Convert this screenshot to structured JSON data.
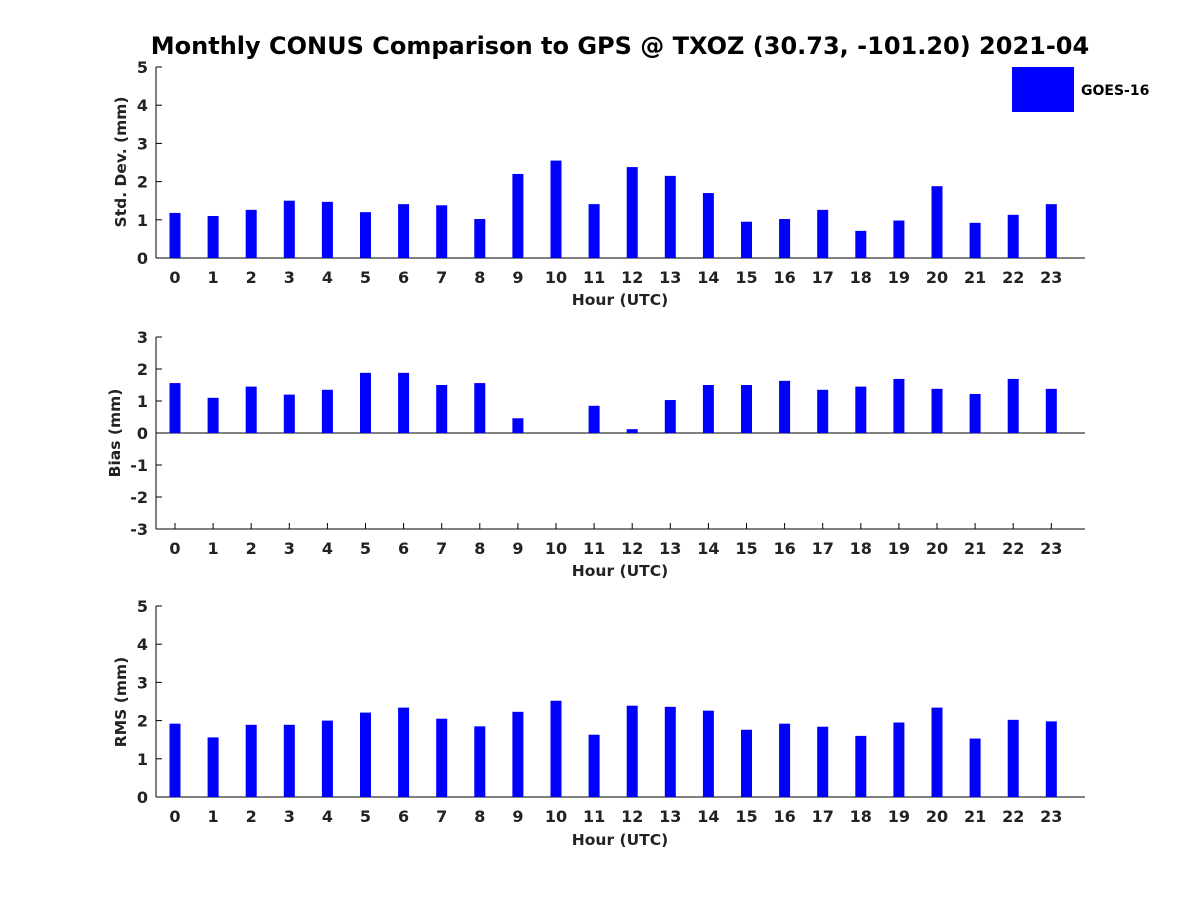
{
  "figure": {
    "title": "Monthly CONUS Comparison to GPS @ TXOZ (30.73, -101.20) 2021-04",
    "bar_color": "#0000ff",
    "legend": {
      "label": "GOES-16",
      "placement": "top-right"
    }
  },
  "chart_data": [
    {
      "type": "bar",
      "categories": [
        "0",
        "1",
        "2",
        "3",
        "4",
        "5",
        "6",
        "7",
        "8",
        "9",
        "10",
        "11",
        "12",
        "13",
        "14",
        "15",
        "16",
        "17",
        "18",
        "19",
        "20",
        "21",
        "22",
        "23"
      ],
      "series": [
        {
          "name": "GOES-16",
          "values": [
            1.18,
            1.1,
            1.26,
            1.5,
            1.47,
            1.2,
            1.41,
            1.38,
            1.02,
            2.2,
            2.55,
            1.41,
            2.38,
            2.15,
            1.7,
            0.95,
            1.02,
            1.26,
            0.71,
            0.98,
            1.88,
            0.92,
            1.13,
            1.41
          ]
        }
      ],
      "xlabel": "Hour (UTC)",
      "ylabel": "Std. Dev. (mm)",
      "ylim": [
        0,
        5
      ],
      "yticks": [
        "0",
        "1",
        "2",
        "3",
        "4",
        "5"
      ],
      "grid": false
    },
    {
      "type": "bar",
      "categories": [
        "0",
        "1",
        "2",
        "3",
        "4",
        "5",
        "6",
        "7",
        "8",
        "9",
        "10",
        "11",
        "12",
        "13",
        "14",
        "15",
        "16",
        "17",
        "18",
        "19",
        "20",
        "21",
        "22",
        "23"
      ],
      "series": [
        {
          "name": "GOES-16",
          "values": [
            1.56,
            1.1,
            1.45,
            1.2,
            1.35,
            1.88,
            1.88,
            1.5,
            1.56,
            0.46,
            0,
            0.85,
            0.12,
            1.03,
            1.5,
            1.5,
            1.63,
            1.35,
            1.45,
            1.69,
            1.38,
            1.22,
            1.69,
            1.38
          ]
        }
      ],
      "xlabel": "Hour (UTC)",
      "ylabel": "Bias (mm)",
      "ylim": [
        -3,
        3
      ],
      "yticks": [
        "-3",
        "-2",
        "-1",
        "0",
        "1",
        "2",
        "3"
      ],
      "grid": false
    },
    {
      "type": "bar",
      "categories": [
        "0",
        "1",
        "2",
        "3",
        "4",
        "5",
        "6",
        "7",
        "8",
        "9",
        "10",
        "11",
        "12",
        "13",
        "14",
        "15",
        "16",
        "17",
        "18",
        "19",
        "20",
        "21",
        "22",
        "23"
      ],
      "series": [
        {
          "name": "GOES-16",
          "values": [
            1.92,
            1.56,
            1.89,
            1.89,
            2.0,
            2.21,
            2.34,
            2.05,
            1.85,
            2.23,
            2.52,
            1.63,
            2.39,
            2.36,
            2.26,
            1.76,
            1.92,
            1.84,
            1.6,
            1.95,
            2.34,
            1.53,
            2.02,
            1.98
          ]
        }
      ],
      "xlabel": "Hour (UTC)",
      "ylabel": "RMS (mm)",
      "ylim": [
        0,
        5
      ],
      "yticks": [
        "0",
        "1",
        "2",
        "3",
        "4",
        "5"
      ],
      "grid": false
    }
  ]
}
